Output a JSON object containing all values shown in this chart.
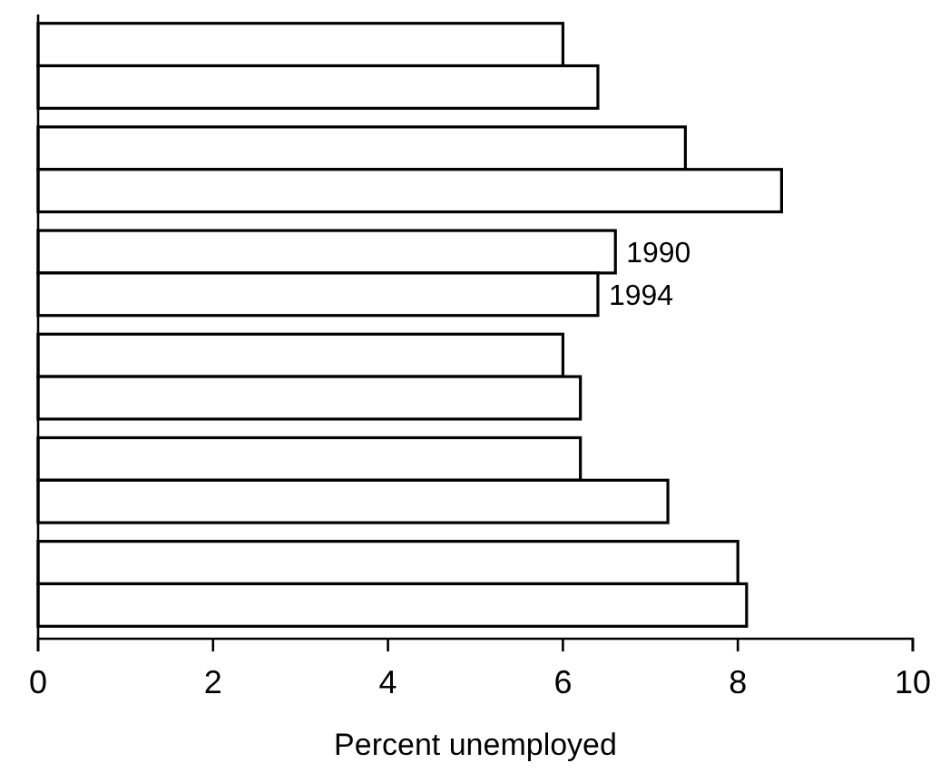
{
  "chart_data": {
    "type": "bar",
    "orientation": "horizontal",
    "xlabel": "Percent unemployed",
    "categories": [
      null,
      null,
      null,
      null,
      null,
      null
    ],
    "series": [
      {
        "name": "1990",
        "color": "#ffffff",
        "values": [
          6.0,
          7.4,
          6.6,
          6.0,
          6.2,
          8.0
        ]
      },
      {
        "name": "1994",
        "color": "#ffffff",
        "values": [
          6.4,
          8.5,
          6.4,
          6.2,
          7.2,
          8.1
        ]
      }
    ],
    "xlim": [
      0,
      10
    ],
    "xticks": [
      0,
      2,
      4,
      6,
      8,
      10
    ],
    "grid": false,
    "legend": false
  }
}
